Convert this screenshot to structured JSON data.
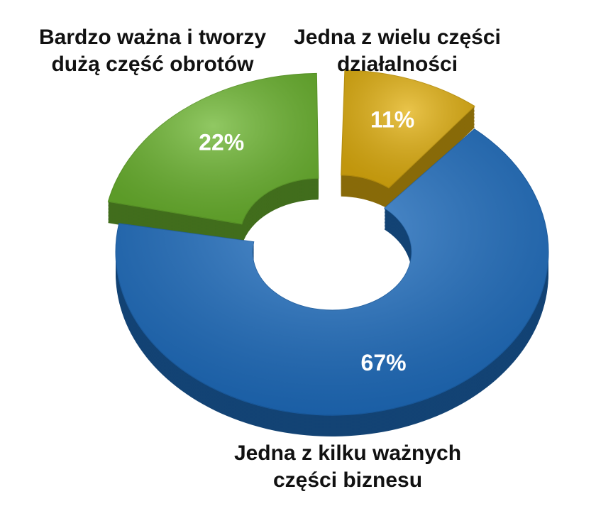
{
  "chart_data": {
    "type": "donut",
    "categories": [
      "Jedna z kilku ważnych części biznesu",
      "Bardzo ważna i tworzy dużą część obrotów",
      "Jedna z wielu części działalności"
    ],
    "values": [
      67,
      22,
      11
    ],
    "value_labels": [
      "67%",
      "22%",
      "11%"
    ],
    "colors": [
      "#1f6fc2",
      "#6cb62f",
      "#e3b10f"
    ]
  }
}
